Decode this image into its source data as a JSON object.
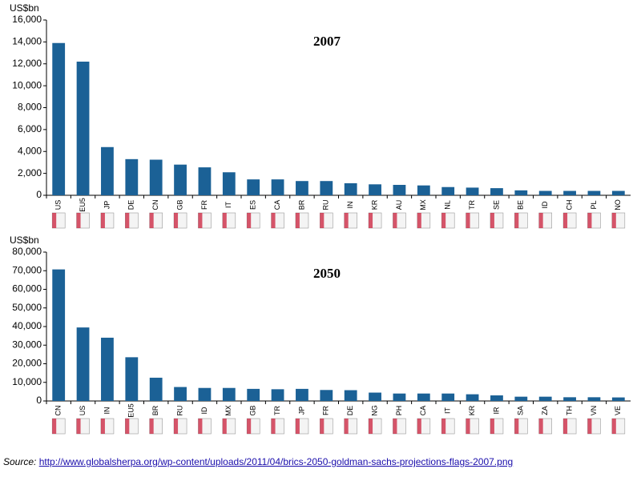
{
  "chart_data": [
    {
      "type": "bar",
      "title": "2007",
      "y_label": "US$bn",
      "color": "#1b6196",
      "categories": [
        "US",
        "EU5",
        "JP",
        "DE",
        "CN",
        "GB",
        "FR",
        "IT",
        "ES",
        "CA",
        "BR",
        "RU",
        "IN",
        "KR",
        "AU",
        "MX",
        "NL",
        "TR",
        "SE",
        "BE",
        "ID",
        "CH",
        "PL",
        "NO"
      ],
      "values": [
        13900,
        12200,
        4400,
        3300,
        3250,
        2800,
        2550,
        2100,
        1450,
        1450,
        1300,
        1300,
        1100,
        1000,
        950,
        900,
        750,
        700,
        650,
        450,
        400,
        400,
        400,
        400
      ],
      "ylim": [
        0,
        16000
      ],
      "yticks": [
        0,
        {
          "value": 2000,
          "label": "2,000"
        },
        {
          "value": 4000,
          "label": "4,000"
        },
        {
          "value": 6000,
          "label": "6,000"
        },
        {
          "value": 8000,
          "label": "8,000"
        },
        {
          "value": 10000,
          "label": "10,000"
        },
        {
          "value": 12000,
          "label": "12,000"
        },
        {
          "value": 14000,
          "label": "14,000"
        },
        {
          "value": 16000,
          "label": "16,000"
        }
      ]
    },
    {
      "type": "bar",
      "title": "2050",
      "y_label": "US$bn",
      "color": "#1b6196",
      "categories": [
        "CN",
        "US",
        "IN",
        "EU5",
        "BR",
        "RU",
        "ID",
        "MX",
        "GB",
        "TR",
        "JP",
        "FR",
        "DE",
        "NG",
        "PH",
        "CA",
        "IT",
        "KR",
        "IR",
        "SA",
        "ZA",
        "TH",
        "VN",
        "VE"
      ],
      "values": [
        70700,
        39500,
        34000,
        23500,
        12500,
        7500,
        7000,
        7000,
        6500,
        6300,
        6500,
        5900,
        5800,
        4500,
        4000,
        4000,
        4000,
        3600,
        3000,
        2300,
        2300,
        2000,
        2000,
        1900
      ],
      "ylim": [
        0,
        80000
      ],
      "yticks": [
        0,
        {
          "value": 10000,
          "label": "10,000"
        },
        {
          "value": 20000,
          "label": "20,000"
        },
        {
          "value": 30000,
          "label": "30,000"
        },
        {
          "value": 40000,
          "label": "40,000"
        },
        {
          "value": 50000,
          "label": "50,000"
        },
        {
          "value": 60000,
          "label": "60,000"
        },
        {
          "value": 70000,
          "label": "70,000"
        },
        {
          "value": 80000,
          "label": "80,000"
        }
      ]
    }
  ],
  "source": {
    "label": "Source:",
    "url": "http://www.globalsherpa.org/wp-content/uploads/2011/04/brics-2050-goldman-sachs-projections-flags-2007.png"
  }
}
